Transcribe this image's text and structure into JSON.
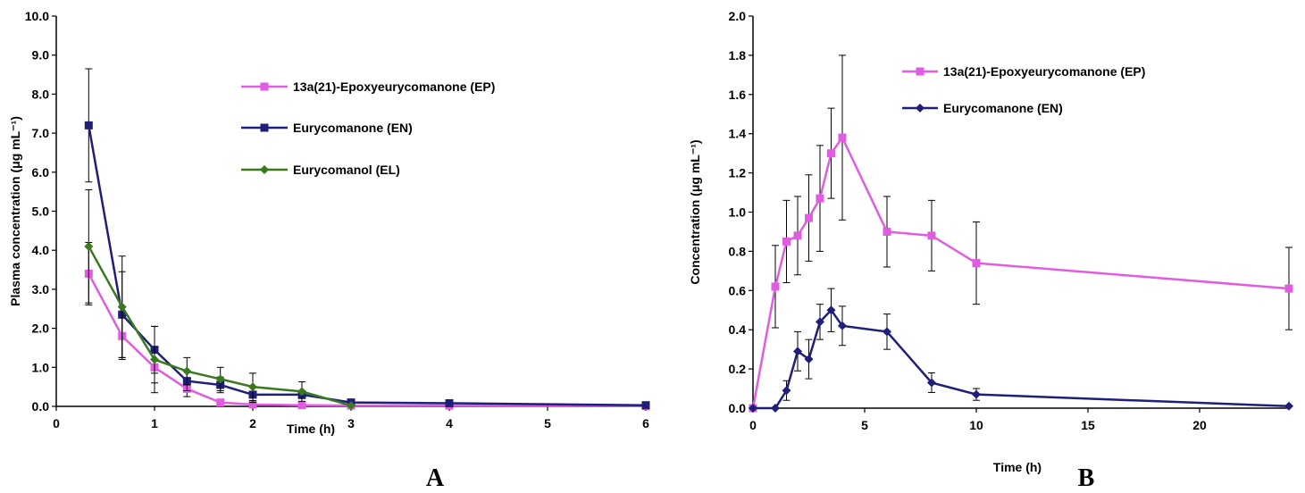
{
  "chart_data": [
    {
      "type": "line",
      "panel_label": "A",
      "xlabel": "Time (h)",
      "ylabel": "Plasma concentration (μg mL⁻¹)",
      "xlim": [
        0,
        6
      ],
      "ylim": [
        0,
        10
      ],
      "xticks": [
        "0",
        "1",
        "2",
        "3",
        "4",
        "5",
        "6"
      ],
      "yticks": [
        "0.0",
        "1.0",
        "2.0",
        "3.0",
        "4.0",
        "5.0",
        "6.0",
        "7.0",
        "8.0",
        "9.0",
        "10.0"
      ],
      "legend_position": "top-right",
      "series": [
        {
          "name": "13a(21)-Epoxyeurycomanone (EP)",
          "color": "#e05ce0",
          "marker": "square",
          "x": [
            0.33,
            0.67,
            1.0,
            1.33,
            1.67,
            2.0,
            2.5,
            3.0,
            4.0,
            6.0
          ],
          "y": [
            3.4,
            1.8,
            1.0,
            0.45,
            0.1,
            0.05,
            0.03,
            0.02,
            0.02,
            0.01
          ],
          "err": [
            0.8,
            0.6,
            0.4,
            0.2,
            0,
            0,
            0,
            0,
            0,
            0
          ]
        },
        {
          "name": "Eurycomanone (EN)",
          "color": "#1f1f7a",
          "marker": "square",
          "x": [
            0.33,
            0.67,
            1.0,
            1.33,
            1.67,
            2.0,
            2.5,
            3.0,
            4.0,
            6.0
          ],
          "y": [
            7.2,
            2.35,
            1.45,
            0.65,
            0.55,
            0.3,
            0.3,
            0.1,
            0.08,
            0.03
          ],
          "err": [
            1.45,
            1.1,
            0.6,
            0.25,
            0.2,
            0.2,
            0.1,
            0.05,
            0.05,
            0
          ]
        },
        {
          "name": "Eurycomanol (EL)",
          "color": "#3a7a1f",
          "marker": "diamond",
          "x": [
            0.33,
            0.67,
            1.0,
            1.33,
            1.67,
            2.0,
            2.5,
            3.0
          ],
          "y": [
            4.1,
            2.55,
            1.2,
            0.9,
            0.7,
            0.5,
            0.38,
            0.02
          ],
          "err": [
            1.45,
            1.3,
            0.85,
            0.35,
            0.3,
            0.35,
            0.25,
            0
          ]
        }
      ]
    },
    {
      "type": "line",
      "panel_label": "B",
      "xlabel": "Time (h)",
      "ylabel": "Concentration (μg mL⁻¹)",
      "xlim": [
        0,
        24
      ],
      "ylim": [
        0,
        2.0
      ],
      "xticks": [
        "0",
        "5",
        "10",
        "15",
        "20"
      ],
      "xtick_values": [
        0,
        5,
        10,
        15,
        20
      ],
      "yticks": [
        "0.0",
        "0.2",
        "0.4",
        "0.6",
        "0.8",
        "1.0",
        "1.2",
        "1.4",
        "1.6",
        "1.8",
        "2.0"
      ],
      "legend_position": "top-right",
      "series": [
        {
          "name": "13a(21)-Epoxyeurycomanone (EP)",
          "color": "#e05ce0",
          "marker": "square",
          "x": [
            0,
            1,
            1.5,
            2,
            2.5,
            3,
            3.5,
            4,
            6,
            8,
            10,
            24
          ],
          "y": [
            0,
            0.62,
            0.85,
            0.88,
            0.97,
            1.07,
            1.3,
            1.38,
            0.9,
            0.88,
            0.74,
            0.61
          ],
          "err": [
            0,
            0.21,
            0.21,
            0.2,
            0.22,
            0.27,
            0.23,
            0.42,
            0.18,
            0.18,
            0.21,
            0.21
          ]
        },
        {
          "name": "Eurycomanone (EN)",
          "color": "#1f1f7a",
          "marker": "diamond",
          "x": [
            0,
            1,
            1.5,
            2,
            2.5,
            3,
            3.5,
            4,
            6,
            8,
            10,
            24
          ],
          "y": [
            0,
            0,
            0.09,
            0.29,
            0.25,
            0.44,
            0.5,
            0.42,
            0.39,
            0.13,
            0.07,
            0.01
          ],
          "err": [
            0,
            0,
            0.05,
            0.1,
            0.1,
            0.09,
            0.11,
            0.1,
            0.09,
            0.05,
            0.03,
            0
          ]
        }
      ]
    }
  ]
}
